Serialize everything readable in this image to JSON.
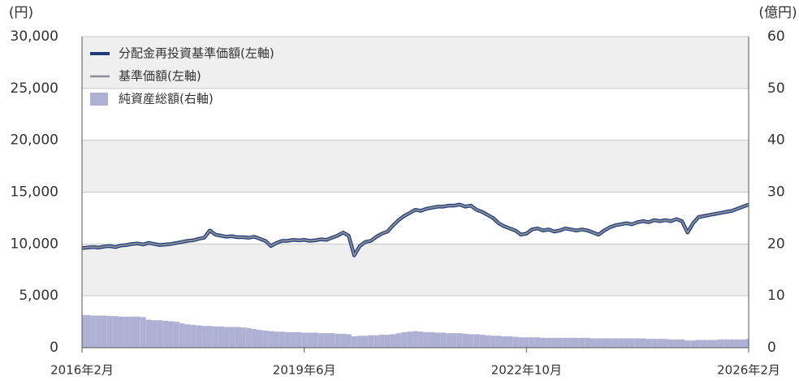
{
  "chart_data": {
    "type": "line",
    "y_unit": "(円)",
    "y2_unit": "(億円)",
    "categories": [
      "2016年2月",
      null,
      null,
      null,
      null,
      null,
      null,
      null,
      null,
      null,
      null,
      null,
      null,
      null,
      null,
      null,
      null,
      null,
      null,
      null,
      null,
      null,
      null,
      null,
      null,
      null,
      null,
      null,
      null,
      null,
      null,
      null,
      null,
      null,
      null,
      null,
      null,
      null,
      null,
      null,
      "2019年6月",
      null,
      null,
      null,
      null,
      null,
      null,
      null,
      null,
      null,
      null,
      null,
      null,
      null,
      null,
      null,
      null,
      null,
      null,
      null,
      null,
      null,
      null,
      null,
      null,
      null,
      null,
      null,
      null,
      null,
      null,
      null,
      null,
      null,
      null,
      null,
      null,
      null,
      null,
      null,
      "2022年10月",
      null,
      null,
      null,
      null,
      null,
      null,
      null,
      null,
      null,
      null,
      null,
      null,
      null,
      null,
      null,
      null,
      null,
      null,
      null,
      null,
      null,
      null,
      null,
      null,
      null,
      null,
      null,
      null,
      null,
      null,
      null,
      null,
      null,
      null,
      null,
      null,
      null,
      null,
      null,
      "2026年2月"
    ],
    "series": [
      {
        "name": "分配金再投資基準価額(左軸)",
        "color": "#1f3a7a",
        "kind": "line",
        "values": [
          9600,
          9650,
          9700,
          9650,
          9750,
          9800,
          9700,
          9850,
          9900,
          10000,
          10050,
          9950,
          10100,
          10000,
          9900,
          9950,
          10000,
          10100,
          10200,
          10300,
          10350,
          10500,
          10600,
          11300,
          10900,
          10800,
          10700,
          10750,
          10650,
          10650,
          10600,
          10700,
          10500,
          10300,
          9800,
          10100,
          10300,
          10300,
          10400,
          10350,
          10400,
          10300,
          10350,
          10450,
          10400,
          10600,
          10800,
          11100,
          10800,
          8900,
          9800,
          10200,
          10300,
          10700,
          11000,
          11200,
          11800,
          12300,
          12700,
          13000,
          13300,
          13200,
          13400,
          13500,
          13600,
          13600,
          13700,
          13700,
          13800,
          13600,
          13700,
          13300,
          13100,
          12800,
          12500,
          12000,
          11700,
          11500,
          11300,
          10900,
          11000,
          11400,
          11500,
          11300,
          11400,
          11200,
          11300,
          11500,
          11400,
          11300,
          11400,
          11300,
          11100,
          10900,
          11300,
          11600,
          11800,
          11900,
          12000,
          11900,
          12100,
          12200,
          12100,
          12300,
          12200,
          12300,
          12200,
          12400,
          12200,
          11100,
          12000,
          12600,
          12700,
          12800,
          12900,
          13000,
          13100,
          13200,
          13400,
          13600,
          13800
        ]
      },
      {
        "name": "基準価額(左軸)",
        "color": "#8a8f99",
        "kind": "line",
        "values": [
          9600,
          9650,
          9700,
          9650,
          9750,
          9800,
          9700,
          9850,
          9900,
          10000,
          10050,
          9950,
          10100,
          10000,
          9900,
          9950,
          10000,
          10100,
          10200,
          10300,
          10350,
          10500,
          10600,
          11300,
          10900,
          10800,
          10700,
          10750,
          10650,
          10650,
          10600,
          10700,
          10500,
          10300,
          9800,
          10100,
          10300,
          10300,
          10400,
          10350,
          10400,
          10300,
          10350,
          10450,
          10400,
          10600,
          10800,
          11100,
          10800,
          8900,
          9800,
          10200,
          10300,
          10700,
          11000,
          11200,
          11800,
          12300,
          12700,
          13000,
          13300,
          13200,
          13400,
          13500,
          13600,
          13600,
          13700,
          13700,
          13800,
          13600,
          13700,
          13300,
          13100,
          12800,
          12500,
          12000,
          11700,
          11500,
          11300,
          10900,
          11000,
          11400,
          11500,
          11300,
          11400,
          11200,
          11300,
          11500,
          11400,
          11300,
          11400,
          11300,
          11100,
          10900,
          11300,
          11600,
          11800,
          11900,
          12000,
          11900,
          12100,
          12200,
          12100,
          12300,
          12200,
          12300,
          12200,
          12400,
          12200,
          11100,
          12000,
          12600,
          12700,
          12800,
          12900,
          13000,
          13100,
          13200,
          13400,
          13600,
          13800
        ]
      },
      {
        "name": "純資産総額(右軸)",
        "color": "#aeb1d3",
        "kind": "area",
        "axis": "y2",
        "values": [
          6.3,
          6.3,
          6.2,
          6.2,
          6.2,
          6.1,
          6.1,
          6.0,
          6.0,
          6.0,
          6.0,
          5.9,
          5.4,
          5.3,
          5.3,
          5.2,
          5.1,
          5.0,
          4.7,
          4.5,
          4.4,
          4.3,
          4.2,
          4.2,
          4.1,
          4.1,
          4.0,
          4.0,
          4.0,
          3.9,
          3.8,
          3.6,
          3.4,
          3.3,
          3.2,
          3.1,
          3.1,
          3.0,
          3.0,
          3.0,
          2.9,
          2.9,
          2.9,
          2.8,
          2.8,
          2.8,
          2.7,
          2.7,
          2.6,
          2.2,
          2.3,
          2.3,
          2.4,
          2.4,
          2.5,
          2.5,
          2.6,
          2.8,
          3.0,
          3.1,
          3.2,
          3.1,
          3.0,
          3.0,
          2.9,
          2.9,
          2.8,
          2.8,
          2.8,
          2.7,
          2.6,
          2.6,
          2.5,
          2.4,
          2.3,
          2.3,
          2.2,
          2.2,
          2.1,
          2.0,
          2.0,
          2.0,
          2.0,
          1.9,
          1.9,
          1.9,
          1.9,
          1.9,
          1.9,
          1.9,
          1.9,
          1.9,
          1.8,
          1.8,
          1.8,
          1.8,
          1.8,
          1.8,
          1.8,
          1.8,
          1.8,
          1.8,
          1.7,
          1.7,
          1.7,
          1.7,
          1.6,
          1.6,
          1.6,
          1.4,
          1.4,
          1.5,
          1.5,
          1.5,
          1.5,
          1.6,
          1.6,
          1.6,
          1.6,
          1.6,
          1.7
        ]
      }
    ],
    "ylim": [
      0,
      30000
    ],
    "yticks": [
      0,
      {
        "value": 5000,
        "label": "5,000"
      },
      {
        "value": 10000,
        "label": "10,000"
      },
      {
        "value": 15000,
        "label": "15,000"
      },
      {
        "value": 20000,
        "label": "20,000"
      },
      {
        "value": 25000,
        "label": "25,000"
      },
      {
        "value": 30000,
        "label": "30,000"
      }
    ],
    "y2lim": [
      0,
      60
    ],
    "y2ticks": [
      0,
      10,
      20,
      30,
      40,
      50,
      60
    ],
    "grid": true,
    "legend": "top-left"
  }
}
